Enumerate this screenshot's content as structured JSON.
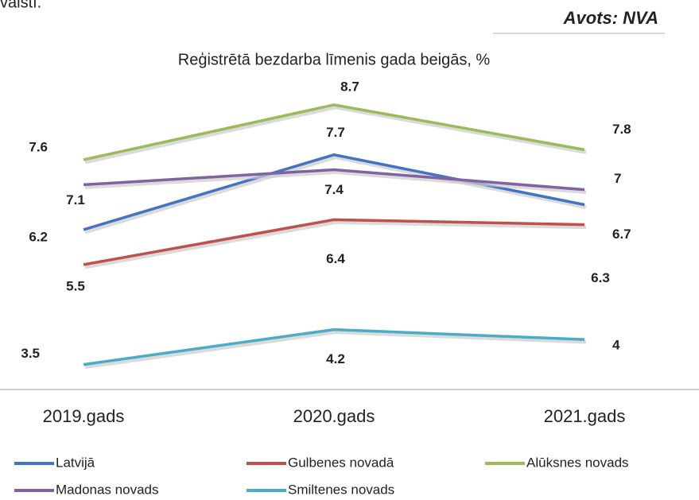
{
  "header": {
    "fragment": "valstī.",
    "source": "Avots: NVA"
  },
  "chart_data": {
    "type": "line",
    "title": "Reģistrētā bezdarba līmenis gada beigās, %",
    "categories": [
      "2019.gads",
      "2020.gads",
      "2021.gads"
    ],
    "series": [
      {
        "name": "Latvijā",
        "color": "#4472c4",
        "values": [
          6.2,
          7.7,
          6.7
        ]
      },
      {
        "name": "Gulbenes novadā",
        "color": "#c0504d",
        "values": [
          5.5,
          6.4,
          6.3
        ]
      },
      {
        "name": "Alūksnes novads",
        "color": "#9bbb59",
        "values": [
          7.6,
          8.7,
          7.8
        ]
      },
      {
        "name": "Madonas novads",
        "color": "#8064a2",
        "values": [
          7.1,
          7.4,
          7.0
        ]
      },
      {
        "name": "Smiltenes novads",
        "color": "#4bacc6",
        "values": [
          3.5,
          4.2,
          4.0
        ]
      }
    ],
    "ylim": [
      3,
      9
    ]
  }
}
